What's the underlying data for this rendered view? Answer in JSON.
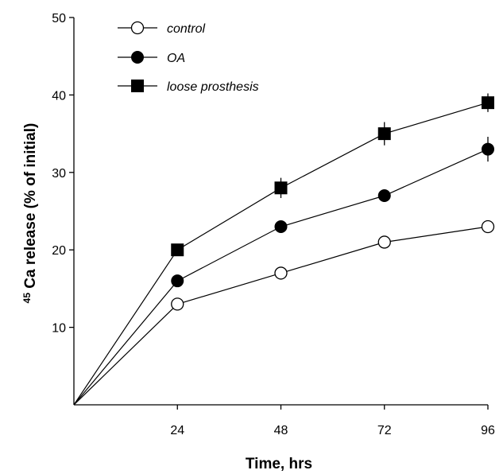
{
  "chart_data": {
    "type": "line",
    "x": [
      0,
      24,
      48,
      72,
      96
    ],
    "xticks": [
      "24",
      "48",
      "72",
      "96"
    ],
    "yticks": [
      "10",
      "20",
      "30",
      "40",
      "50"
    ],
    "xlim": [
      0,
      96
    ],
    "ylim": [
      0,
      50
    ],
    "xlabel": "Time, hrs",
    "ylabel_sup": "45",
    "ylabel_main": " Ca release (% of initial)",
    "grid": false,
    "legend_position": "top-left",
    "series": [
      {
        "name": "control",
        "marker": "open-circle",
        "values": [
          0,
          13,
          17,
          21,
          23
        ],
        "errors": [
          0,
          0,
          0,
          0.8,
          0.8
        ]
      },
      {
        "name": "OA",
        "marker": "filled-circle",
        "values": [
          0,
          16,
          23,
          27,
          33
        ],
        "errors": [
          0,
          0,
          0.8,
          0.8,
          1.6
        ]
      },
      {
        "name": "loose prosthesis",
        "marker": "filled-square",
        "values": [
          0,
          20,
          28,
          35,
          39
        ],
        "errors": [
          0,
          0,
          1.3,
          1.5,
          1.2
        ]
      }
    ]
  }
}
